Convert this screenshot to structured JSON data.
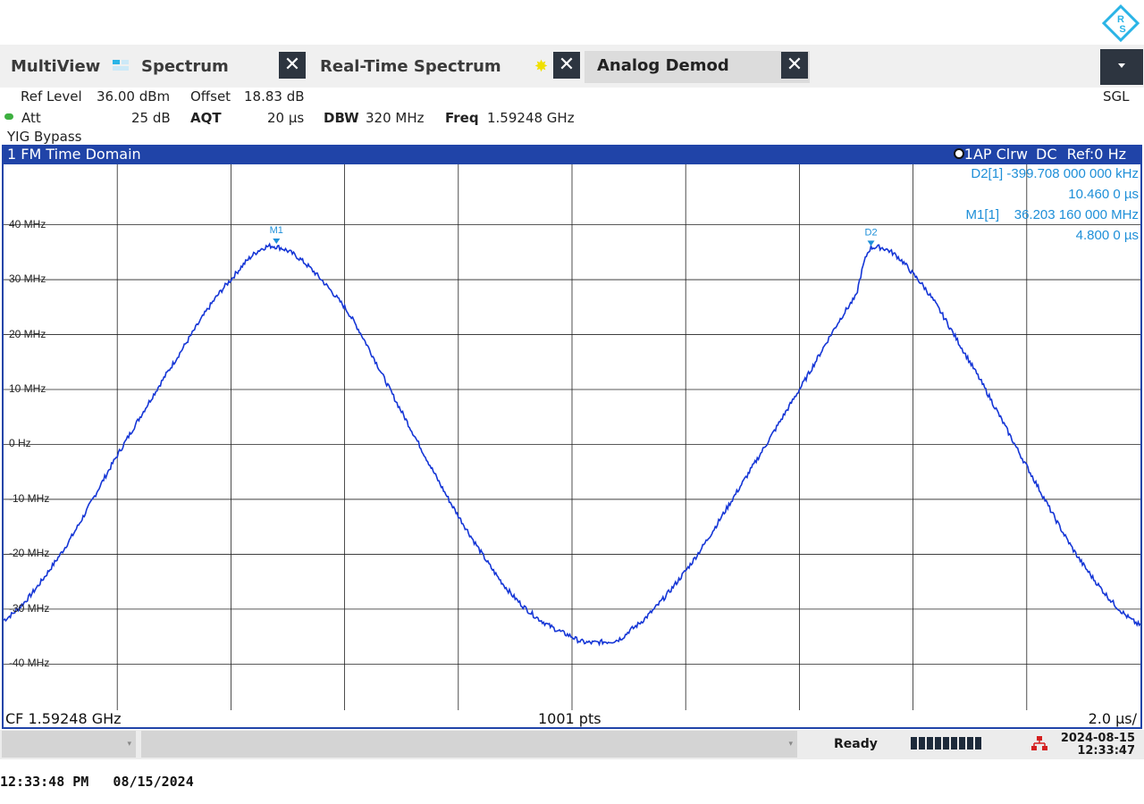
{
  "tabs": [
    {
      "label": "MultiView"
    },
    {
      "label": "Spectrum"
    },
    {
      "label": "Real-Time Spectrum"
    },
    {
      "label": "Analog Demod"
    }
  ],
  "mode_label": "SGL",
  "settings": {
    "ref_level_label": "Ref Level",
    "ref_level_value": "36.00 dBm",
    "offset_label": "Offset",
    "offset_value": "18.83 dB",
    "att_label": "Att",
    "att_value": "25 dB",
    "aqt_label": "AQT",
    "aqt_value": "20 µs",
    "dbw_label": "DBW",
    "dbw_value": "320 MHz",
    "freq_label": "Freq",
    "freq_value": "1.59248 GHz",
    "yig": "YIG Bypass"
  },
  "diagram": {
    "title": "1 FM Time Domain",
    "trace_info_pre": "1AP Clrw",
    "trace_info_dc": "DC",
    "trace_info_ref": "Ref:",
    "trace_info_ref_val": "0 Hz"
  },
  "marker_info": {
    "d2_line1": "D2[1] -399.708 000 000 kHz",
    "d2_line2": "10.460 0 µs",
    "m1_line1": "M1[1]    36.203 160 000 MHz",
    "m1_line2": "4.800 0 µs"
  },
  "markers": [
    {
      "label": "M1",
      "time_us": 4.8,
      "value_mhz": 36.2
    },
    {
      "label": "D2",
      "time_us": 15.26,
      "value_mhz": 35.8
    }
  ],
  "chart_data": {
    "type": "line",
    "title": "1 FM Time Domain",
    "xlabel": "",
    "ylabel": "",
    "y_tick_labels": [
      "40 MHz",
      "30 MHz",
      "20 MHz",
      "10 MHz",
      "0 Hz",
      "-10 MHz",
      "-20 MHz",
      "-30 MHz",
      "-40 MHz"
    ],
    "y_ticks": [
      40,
      30,
      20,
      10,
      0,
      -10,
      -20,
      -30,
      -40
    ],
    "ylim": [
      -48.4,
      51
    ],
    "xlim": [
      0,
      20
    ],
    "grid": true,
    "series": [
      {
        "x": [
          0,
          1,
          2,
          3,
          4,
          4.8,
          6,
          7,
          8,
          9,
          10,
          10.5,
          11,
          12,
          13,
          14,
          15,
          15.26,
          16,
          17,
          18,
          19,
          20
        ],
        "values": [
          -32,
          -20,
          -2,
          15,
          30,
          36,
          25,
          6,
          -13,
          -28,
          -35,
          -36,
          -34,
          -23,
          -7,
          10,
          27,
          35.8,
          31,
          15,
          -4,
          -22,
          -33
        ]
      }
    ]
  },
  "footer": {
    "cf": "CF 1.59248 GHz",
    "pts": "1001 pts",
    "div": "2.0 µs/"
  },
  "status": {
    "ready": "Ready",
    "date": "2024-08-15",
    "time": "12:33:47"
  },
  "bottom_timestamp": "12:33:48 PM   08/15/2024",
  "colors": {
    "trace": "#1536d6",
    "header_bar": "#2044a8",
    "marker": "#1e8fd8"
  }
}
